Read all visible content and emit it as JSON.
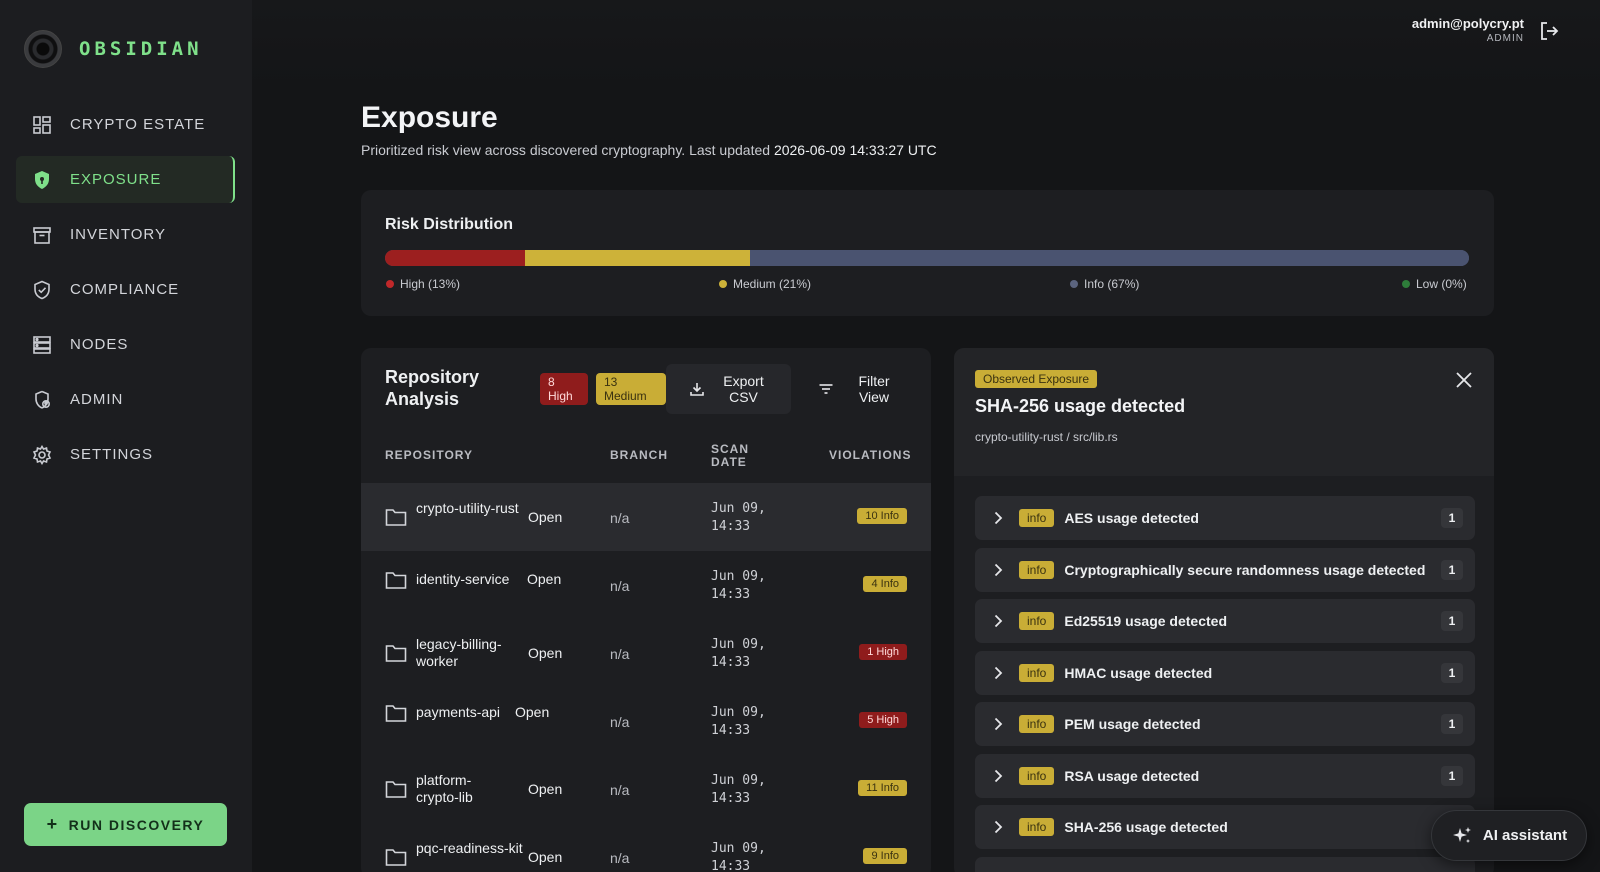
{
  "brand": {
    "name": "OBSIDIAN"
  },
  "sidebar": {
    "items": [
      {
        "label": "CRYPTO ESTATE",
        "icon": "dashboard-icon"
      },
      {
        "label": "EXPOSURE",
        "icon": "shield-icon",
        "active": true
      },
      {
        "label": "INVENTORY",
        "icon": "archive-icon"
      },
      {
        "label": "COMPLIANCE",
        "icon": "shield-check-icon"
      },
      {
        "label": "NODES",
        "icon": "server-icon"
      },
      {
        "label": "ADMIN",
        "icon": "admin-shield-icon"
      },
      {
        "label": "SETTINGS",
        "icon": "gear-icon"
      }
    ],
    "run_discovery": "RUN DISCOVERY"
  },
  "user": {
    "email": "admin@polycry.pt",
    "role": "ADMIN"
  },
  "page": {
    "title": "Exposure",
    "subtitle": "Prioritized risk view across discovered cryptography. Last updated",
    "timestamp": "2026-06-09 14:33:27 UTC"
  },
  "risk": {
    "title": "Risk Distribution",
    "segments": [
      {
        "label": "High (13%)",
        "percent": 13,
        "color": "#9c1f1f"
      },
      {
        "label": "Medium (21%)",
        "percent": 21,
        "color": "#cdb239"
      },
      {
        "label": "Info (67%)",
        "percent": 67,
        "color": "#4a5370"
      },
      {
        "label": "Low (0%)",
        "percent": 0,
        "color": "#2e7d3a"
      }
    ]
  },
  "repos": {
    "title": "Repository Analysis",
    "badge_high": {
      "count": "8",
      "label": "High"
    },
    "badge_medium": {
      "count": "13",
      "label": "Medium"
    },
    "export_label": "Export CSV",
    "filter_label": "Filter View",
    "columns": {
      "repository": "REPOSITORY",
      "branch": "BRANCH",
      "scan_date": "SCAN DATE",
      "violations": "VIOLATIONS"
    },
    "rows": [
      {
        "name": "crypto-utility-rust",
        "status": "Open",
        "branch": "n/a",
        "date": "Jun 09, 14:33",
        "violations": "10 Info",
        "severity": "info",
        "selected": true
      },
      {
        "name": "identity-service",
        "status": "Open",
        "branch": "n/a",
        "date": "Jun 09, 14:33",
        "violations": "4 Info",
        "severity": "info"
      },
      {
        "name": "legacy-billing-worker",
        "status": "Open",
        "branch": "n/a",
        "date": "Jun 09, 14:33",
        "violations": "1 High",
        "severity": "high"
      },
      {
        "name": "payments-api",
        "status": "Open",
        "branch": "n/a",
        "date": "Jun 09, 14:33",
        "violations": "5 High",
        "severity": "high"
      },
      {
        "name": "platform-crypto-lib",
        "status": "Open",
        "branch": "n/a",
        "date": "Jun 09, 14:33",
        "violations": "11 Info",
        "severity": "info"
      },
      {
        "name": "pqc-readiness-kit",
        "status": "Open",
        "branch": "n/a",
        "date": "Jun 09, 14:33",
        "violations": "9 Info",
        "severity": "info"
      }
    ]
  },
  "detail": {
    "badge": "Observed Exposure",
    "title": "SHA-256 usage detected",
    "path": "crypto-utility-rust / src/lib.rs",
    "findings": [
      {
        "tag": "info",
        "title": "AES usage detected",
        "count": "1"
      },
      {
        "tag": "info",
        "title": "Cryptographically secure randomness usage detected",
        "count": "1"
      },
      {
        "tag": "info",
        "title": "Ed25519 usage detected",
        "count": "1"
      },
      {
        "tag": "info",
        "title": "HMAC usage detected",
        "count": "1"
      },
      {
        "tag": "info",
        "title": "PEM usage detected",
        "count": "1"
      },
      {
        "tag": "info",
        "title": "RSA usage detected",
        "count": "1"
      },
      {
        "tag": "info",
        "title": "SHA-256 usage detected",
        "count": "1"
      }
    ]
  },
  "ai_assistant": {
    "label": "AI assistant"
  }
}
